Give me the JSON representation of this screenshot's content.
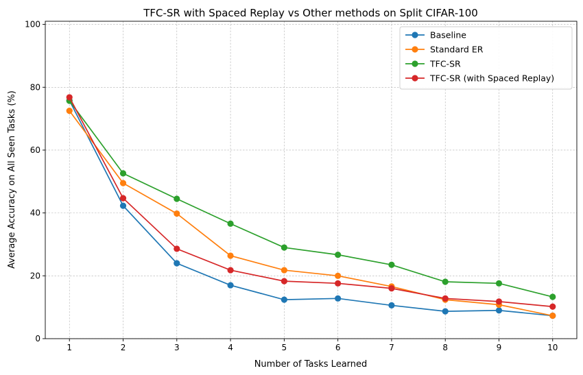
{
  "chart_data": {
    "type": "line",
    "title": "TFC-SR with Spaced Replay vs Other methods on Split CIFAR-100",
    "xlabel": "Number of Tasks Learned",
    "ylabel": "Average Accuracy on All Seen Tasks (%)",
    "x": [
      1,
      2,
      3,
      4,
      5,
      6,
      7,
      8,
      9,
      10
    ],
    "xticks": [
      "1",
      "2",
      "3",
      "4",
      "5",
      "6",
      "7",
      "8",
      "9",
      "10"
    ],
    "yticks": [
      "0",
      "20",
      "40",
      "60",
      "80",
      "100"
    ],
    "ylim": [
      0,
      101
    ],
    "grid": true,
    "legend_position": "top-right",
    "series": [
      {
        "name": "Baseline",
        "color": "#1f77b4",
        "values": [
          75.8,
          42.3,
          24.0,
          17.0,
          12.4,
          12.8,
          10.6,
          8.7,
          9.0,
          7.3
        ]
      },
      {
        "name": "Standard ER",
        "color": "#ff7f0e",
        "values": [
          72.5,
          49.5,
          39.8,
          26.4,
          21.8,
          20.0,
          16.6,
          12.4,
          10.8,
          7.3
        ]
      },
      {
        "name": "TFC-SR",
        "color": "#2ca02c",
        "values": [
          75.7,
          52.6,
          44.5,
          36.6,
          29.0,
          26.7,
          23.5,
          18.1,
          17.6,
          13.3
        ]
      },
      {
        "name": "TFC-SR (with Spaced Replay)",
        "color": "#d62728",
        "values": [
          76.8,
          44.7,
          28.6,
          21.8,
          18.3,
          17.6,
          16.0,
          12.8,
          11.8,
          10.2
        ]
      }
    ]
  }
}
